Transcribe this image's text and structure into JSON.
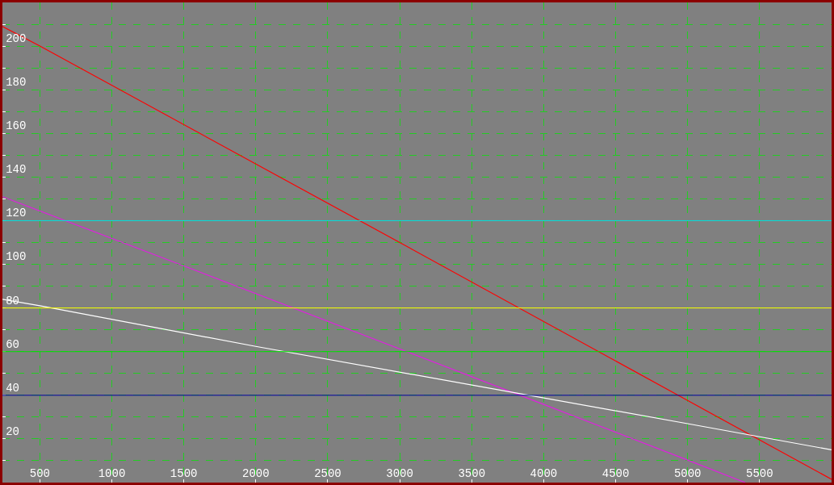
{
  "chart_data": {
    "type": "line",
    "series": [
      {
        "color": "#ff0000",
        "x": [
          240,
          500,
          3000,
          5000,
          6000
        ],
        "values": [
          209,
          200,
          110,
          37.6,
          1.5
        ]
      },
      {
        "color": "#e020e0",
        "x": [
          240,
          1500,
          4000,
          5000,
          5400
        ],
        "values": [
          131,
          99.3,
          35.8,
          10.3,
          0
        ]
      },
      {
        "color": "#ffffff",
        "x": [
          240,
          500,
          2000,
          5000,
          6000
        ],
        "values": [
          84,
          81,
          62.4,
          27,
          15
        ]
      }
    ],
    "ref_lines": [
      {
        "axis": "y",
        "value": 120,
        "color": "#00e0e0"
      },
      {
        "axis": "y",
        "value": 80,
        "color": "#ffff00"
      },
      {
        "axis": "y",
        "value": 60,
        "color": "#00e000"
      },
      {
        "axis": "y",
        "value": 40,
        "color": "#0000a0"
      }
    ],
    "xlim": [
      240,
      6000
    ],
    "ylim": [
      0,
      220
    ],
    "xticks": [
      500,
      1000,
      1500,
      2000,
      2500,
      3000,
      3500,
      4000,
      4500,
      5000,
      5500
    ],
    "yticks": [
      {
        "value": 10,
        "label": null
      },
      20,
      {
        "value": 30,
        "label": null
      },
      40,
      {
        "value": 50,
        "label": null
      },
      60,
      {
        "value": 70,
        "label": null
      },
      80,
      {
        "value": 90,
        "label": null
      },
      100,
      {
        "value": 110,
        "label": null
      },
      120,
      {
        "value": 130,
        "label": null
      },
      140,
      {
        "value": 150,
        "label": null
      },
      160,
      {
        "value": 170,
        "label": null
      },
      180,
      {
        "value": 190,
        "label": null
      },
      200,
      {
        "value": 210,
        "label": null
      }
    ],
    "grid": true
  }
}
